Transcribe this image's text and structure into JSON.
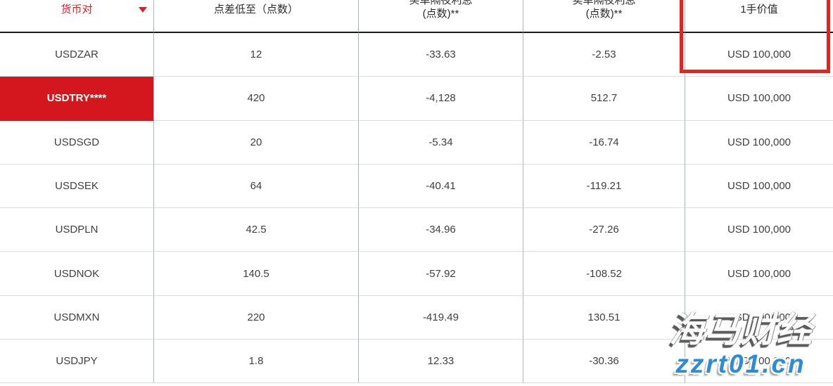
{
  "colors": {
    "header_accent": "#d4242b",
    "highlight_row_bg": "#d4171f",
    "annotation_border": "#e8231d",
    "grid_vertical": "#a8b6c2",
    "grid_horizontal": "#d9dde1",
    "watermark_blue": "#2e8bd8"
  },
  "table": {
    "columns": [
      {
        "label": "货币对"
      },
      {
        "label": "点差低至（点数）"
      },
      {
        "label": "买单隔夜利息",
        "label2": "(点数)**"
      },
      {
        "label": "卖单隔夜利息",
        "label2": "(点数)**"
      },
      {
        "label": "1手价值"
      }
    ],
    "rows": [
      {
        "pair": "USDZAR",
        "spread": "12",
        "buy_swap": "-33.63",
        "sell_swap": "-2.53",
        "lot_value": "USD 100,000"
      },
      {
        "pair": "USDTRY****",
        "spread": "420",
        "buy_swap": "-4,128",
        "sell_swap": "512.7",
        "lot_value": "USD 100,000"
      },
      {
        "pair": "USDSGD",
        "spread": "20",
        "buy_swap": "-5.34",
        "sell_swap": "-16.74",
        "lot_value": "USD 100,000"
      },
      {
        "pair": "USDSEK",
        "spread": "64",
        "buy_swap": "-40.41",
        "sell_swap": "-119.21",
        "lot_value": "USD 100,000"
      },
      {
        "pair": "USDPLN",
        "spread": "42.5",
        "buy_swap": "-34.96",
        "sell_swap": "-27.26",
        "lot_value": "USD 100,000"
      },
      {
        "pair": "USDNOK",
        "spread": "140.5",
        "buy_swap": "-57.92",
        "sell_swap": "-108.52",
        "lot_value": "USD 100,000"
      },
      {
        "pair": "USDMXN",
        "spread": "220",
        "buy_swap": "-419.49",
        "sell_swap": "130.51",
        "lot_value": "USD 100,000"
      },
      {
        "pair": "USDJPY",
        "spread": "1.8",
        "buy_swap": "12.33",
        "sell_swap": "-30.36",
        "lot_value": "USD 100,000"
      }
    ]
  },
  "watermark": {
    "line1": "海马财经",
    "line2": "zzrt01.cn"
  }
}
